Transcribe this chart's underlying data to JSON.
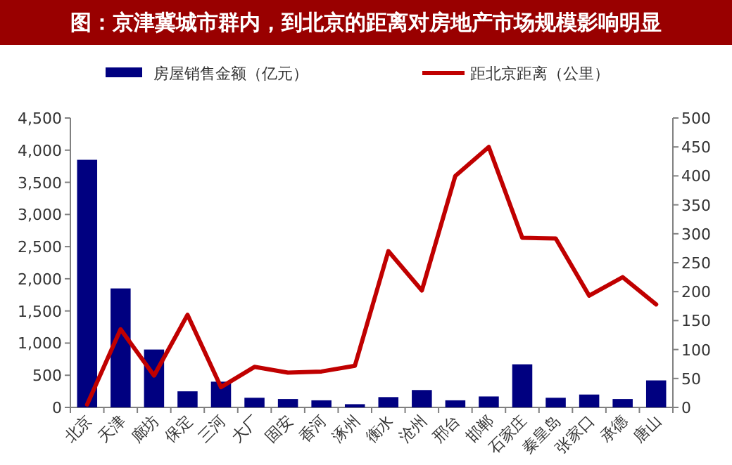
{
  "chart_data": {
    "type": "bar",
    "title": "图：京津冀城市群内，到北京的距离对房地产市场规模影响明显",
    "categories": [
      "北京",
      "天津",
      "廊坊",
      "保定",
      "三河",
      "大厂",
      "固安",
      "香河",
      "涿州",
      "衡水",
      "沧州",
      "邢台",
      "邯郸",
      "石家庄",
      "秦皇岛",
      "张家口",
      "承德",
      "唐山"
    ],
    "series": [
      {
        "name": "房屋销售金额（亿元）",
        "color": "#000080",
        "values": [
          3850,
          1850,
          900,
          250,
          400,
          150,
          130,
          110,
          50,
          160,
          270,
          110,
          170,
          670,
          150,
          200,
          130,
          420
        ]
      },
      {
        "name": "距北京距离（公里）",
        "type": "line",
        "axis": "y2",
        "color": "#c00000",
        "values": [
          5,
          135,
          55,
          160,
          35,
          70,
          60,
          62,
          72,
          270,
          202,
          400,
          450,
          293,
          292,
          193,
          225,
          178
        ]
      }
    ],
    "ylim": [
      0,
      4500
    ],
    "yticks": [
      {
        "value": 0,
        "label": "0"
      },
      {
        "value": 500,
        "label": "500"
      },
      {
        "value": 1000,
        "label": "1,000"
      },
      {
        "value": 1500,
        "label": "1,500"
      },
      {
        "value": 2000,
        "label": "2,000"
      },
      {
        "value": 2500,
        "label": "2,500"
      },
      {
        "value": 3000,
        "label": "3,000"
      },
      {
        "value": 3500,
        "label": "3,500"
      },
      {
        "value": 4000,
        "label": "4,000"
      },
      {
        "value": 4500,
        "label": "4,500"
      }
    ],
    "y2lim": [
      0,
      500
    ],
    "y2ticks": [
      0,
      50,
      100,
      150,
      200,
      250,
      300,
      350,
      400,
      450,
      500
    ],
    "grid": false,
    "legend": "top",
    "marker": "none",
    "line_style": "solid"
  }
}
